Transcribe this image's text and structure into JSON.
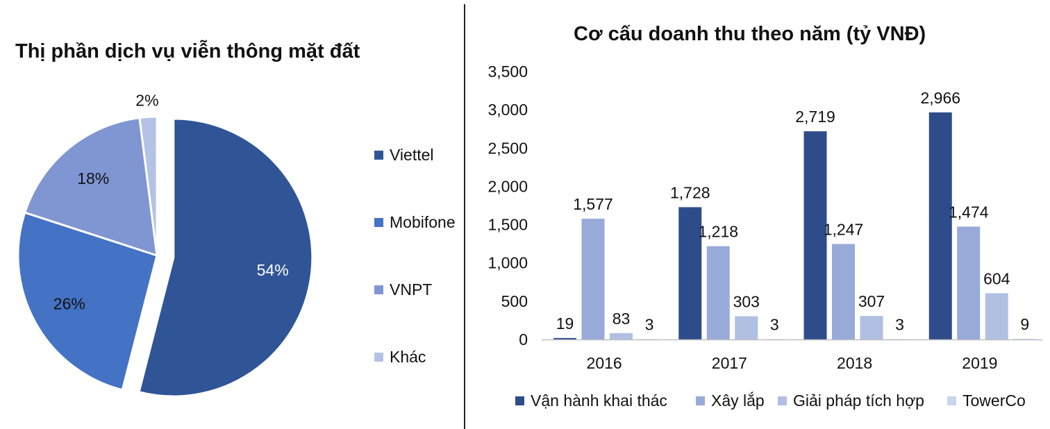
{
  "chart_data": [
    {
      "type": "pie",
      "title": "Thị phần dịch vụ viễn thông mặt đất",
      "slices": [
        {
          "label": "Viettel",
          "value": 54,
          "display": "54%",
          "color": "#2f5597"
        },
        {
          "label": "Mobifone",
          "value": 26,
          "display": "26%",
          "color": "#4472c4"
        },
        {
          "label": "VNPT",
          "value": 18,
          "display": "18%",
          "color": "#7f96d2"
        },
        {
          "label": "Khác",
          "value": 2,
          "display": "2%",
          "color": "#b4c2e6"
        }
      ],
      "exploded": "Viettel",
      "legend_position": "right"
    },
    {
      "type": "bar",
      "title": "Cơ cấu doanh thu theo năm (tỷ VNĐ)",
      "categories": [
        "2016",
        "2017",
        "2018",
        "2019"
      ],
      "series": [
        {
          "name": "Vận hành khai thác",
          "color": "#2f4c8a",
          "values": [
            19,
            1728,
            2719,
            2966
          ]
        },
        {
          "name": "Xây lắp",
          "color": "#98aad8",
          "values": [
            1577,
            1218,
            1247,
            1474
          ]
        },
        {
          "name": "Giải pháp tích hợp",
          "color": "#b0bfe2",
          "values": [
            83,
            303,
            307,
            604
          ]
        },
        {
          "name": "TowerCo",
          "color": "#c9d4ee",
          "values": [
            3,
            3,
            3,
            9
          ]
        }
      ],
      "ylim": [
        0,
        3500
      ],
      "yticks": [
        0,
        500,
        1000,
        1500,
        2000,
        2500,
        3000,
        3500
      ],
      "grid": false,
      "legend_position": "bottom"
    }
  ]
}
